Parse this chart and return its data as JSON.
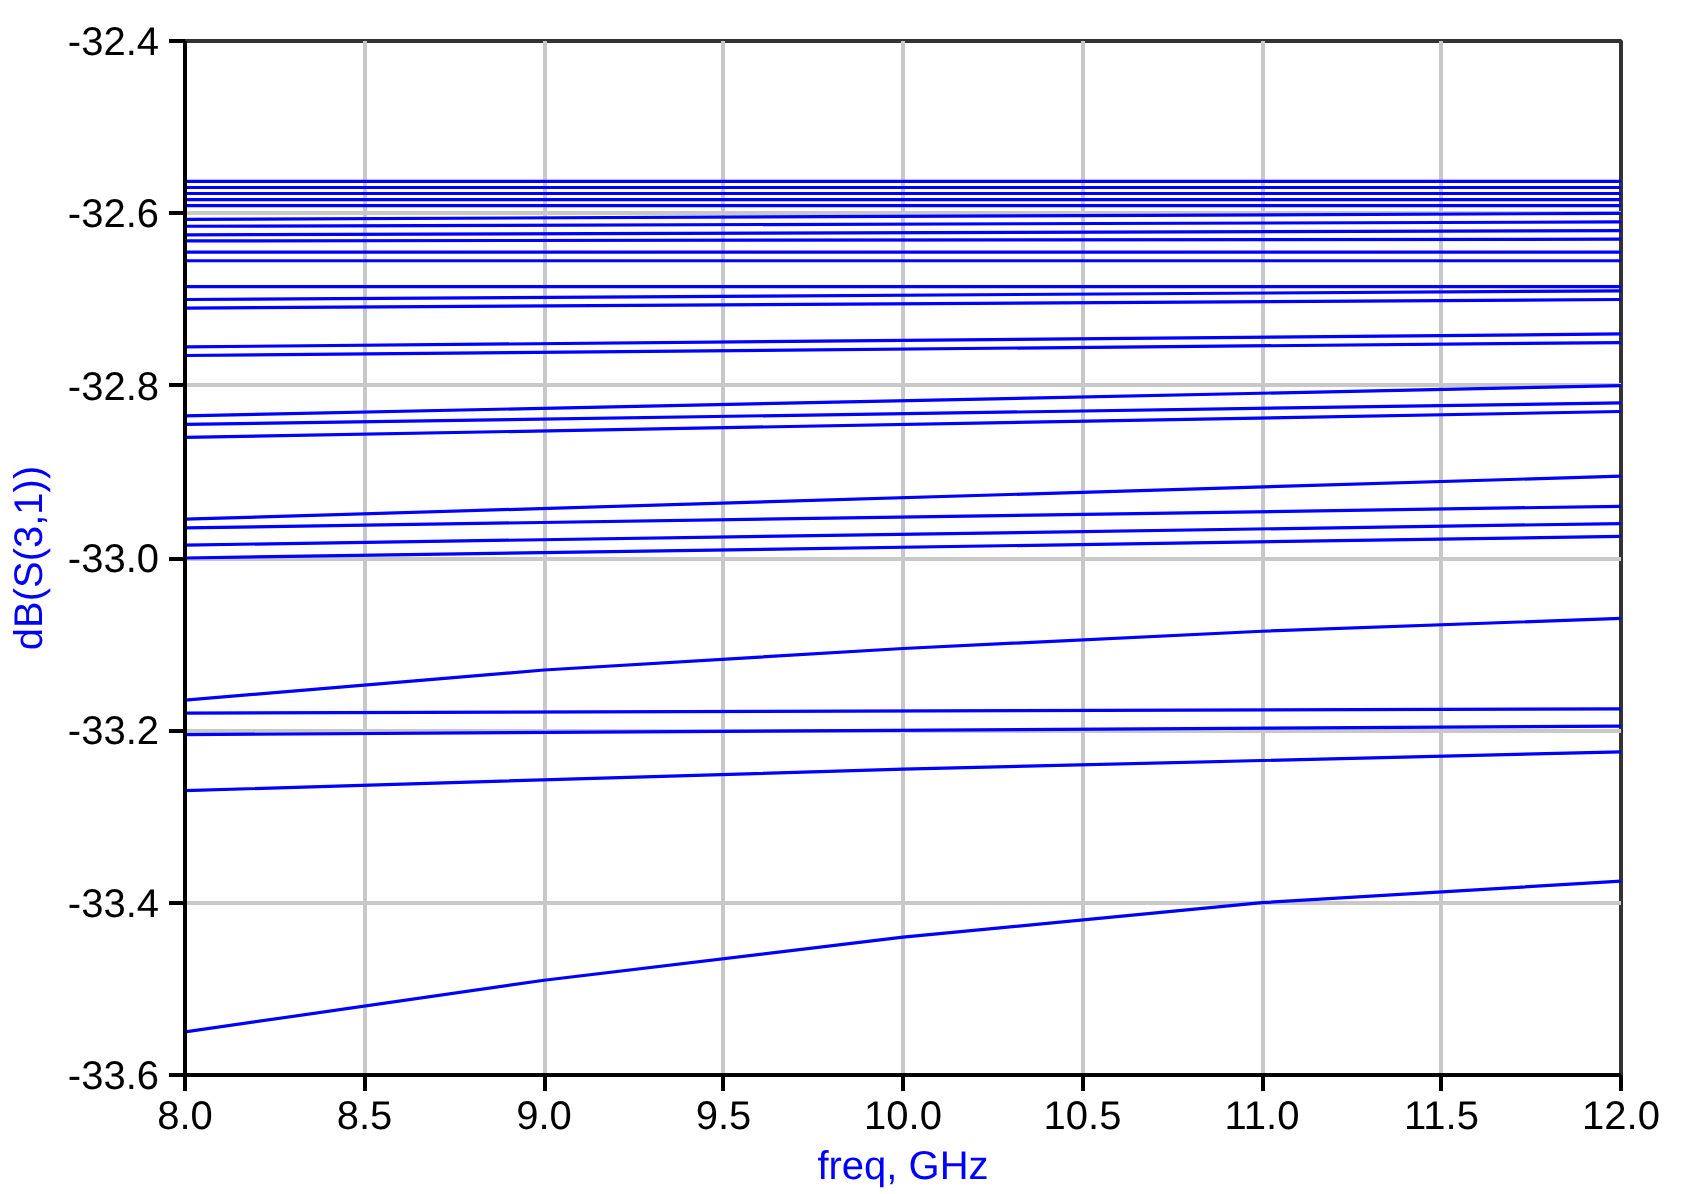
{
  "chart_data": {
    "type": "line",
    "xlabel": "freq, GHz",
    "ylabel": "dB(S(3,1))",
    "xlim": [
      8.0,
      12.0
    ],
    "ylim": [
      -33.6,
      -32.4
    ],
    "xticks": [
      {
        "value": 8.0,
        "label": "8.0"
      },
      {
        "value": 8.5,
        "label": "8.5"
      },
      {
        "value": 9.0,
        "label": "9.0"
      },
      {
        "value": 9.5,
        "label": "9.5"
      },
      {
        "value": 10.0,
        "label": "10.0"
      },
      {
        "value": 10.5,
        "label": "10.5"
      },
      {
        "value": 11.0,
        "label": "11.0"
      },
      {
        "value": 11.5,
        "label": "11.5"
      },
      {
        "value": 12.0,
        "label": "12.0"
      }
    ],
    "yticks": [
      {
        "value": -33.6,
        "label": "-33.6"
      },
      {
        "value": -33.4,
        "label": "-33.4"
      },
      {
        "value": -33.2,
        "label": "-33.2"
      },
      {
        "value": -33.0,
        "label": "-33.0"
      },
      {
        "value": -32.8,
        "label": "-32.8"
      },
      {
        "value": -32.6,
        "label": "-32.6"
      },
      {
        "value": -32.4,
        "label": "-32.4"
      }
    ],
    "grid": true,
    "marker": "none",
    "line_style": "solid",
    "series": [
      {
        "color": "#0000ff",
        "x": [
          8,
          12
        ],
        "values": [
          -32.563,
          -32.563
        ]
      },
      {
        "color": "#0000ff",
        "x": [
          8,
          12
        ],
        "values": [
          -32.57,
          -32.57
        ]
      },
      {
        "color": "#0000ff",
        "x": [
          8,
          12
        ],
        "values": [
          -32.577,
          -32.577
        ]
      },
      {
        "color": "#0000ff",
        "x": [
          8,
          12
        ],
        "values": [
          -32.584,
          -32.584
        ]
      },
      {
        "color": "#0000ff",
        "x": [
          8,
          12
        ],
        "values": [
          -32.591,
          -32.591
        ]
      },
      {
        "color": "#0000ff",
        "x": [
          8,
          12
        ],
        "values": [
          -32.607,
          -32.6
        ]
      },
      {
        "color": "#0000ff",
        "x": [
          8,
          12
        ],
        "values": [
          -32.615,
          -32.61
        ]
      },
      {
        "color": "#0000ff",
        "x": [
          8,
          12
        ],
        "values": [
          -32.625,
          -32.62
        ]
      },
      {
        "color": "#0000ff",
        "x": [
          8,
          12
        ],
        "values": [
          -32.632,
          -32.63
        ]
      },
      {
        "color": "#0000ff",
        "x": [
          8,
          12
        ],
        "values": [
          -32.645,
          -32.645
        ]
      },
      {
        "color": "#0000ff",
        "x": [
          8,
          12
        ],
        "values": [
          -32.655,
          -32.655
        ]
      },
      {
        "color": "#0000ff",
        "x": [
          8,
          12
        ],
        "values": [
          -32.685,
          -32.685
        ]
      },
      {
        "color": "#0000ff",
        "x": [
          8,
          12
        ],
        "values": [
          -32.7,
          -32.69
        ]
      },
      {
        "color": "#0000ff",
        "x": [
          8,
          12
        ],
        "values": [
          -32.71,
          -32.7
        ]
      },
      {
        "color": "#0000ff",
        "x": [
          8,
          12
        ],
        "values": [
          -32.755,
          -32.74
        ]
      },
      {
        "color": "#0000ff",
        "x": [
          8,
          12
        ],
        "values": [
          -32.765,
          -32.75
        ]
      },
      {
        "color": "#0000ff",
        "x": [
          8,
          12
        ],
        "values": [
          -32.835,
          -32.8
        ]
      },
      {
        "color": "#0000ff",
        "x": [
          8,
          12
        ],
        "values": [
          -32.845,
          -32.82
        ]
      },
      {
        "color": "#0000ff",
        "x": [
          8,
          12
        ],
        "values": [
          -32.86,
          -32.83
        ]
      },
      {
        "color": "#0000ff",
        "x": [
          8,
          12
        ],
        "values": [
          -32.955,
          -32.905
        ]
      },
      {
        "color": "#0000ff",
        "x": [
          8,
          12
        ],
        "values": [
          -32.965,
          -32.94
        ]
      },
      {
        "color": "#0000ff",
        "x": [
          8,
          12
        ],
        "values": [
          -32.985,
          -32.96
        ]
      },
      {
        "color": "#0000ff",
        "x": [
          8,
          12
        ],
        "values": [
          -33.0,
          -32.975
        ]
      },
      {
        "color": "#0000ff",
        "x": [
          8,
          9,
          10,
          11,
          12
        ],
        "values": [
          -33.165,
          -33.13,
          -33.105,
          -33.085,
          -33.07
        ]
      },
      {
        "color": "#0000ff",
        "x": [
          8,
          12
        ],
        "values": [
          -33.18,
          -33.175
        ]
      },
      {
        "color": "#0000ff",
        "x": [
          8,
          12
        ],
        "values": [
          -33.205,
          -33.195
        ]
      },
      {
        "color": "#0000ff",
        "x": [
          8,
          10,
          12
        ],
        "values": [
          -33.27,
          -33.245,
          -33.225
        ]
      },
      {
        "color": "#0000ff",
        "x": [
          8,
          9,
          10,
          11,
          12
        ],
        "values": [
          -33.55,
          -33.49,
          -33.44,
          -33.4,
          -33.375
        ]
      }
    ]
  }
}
